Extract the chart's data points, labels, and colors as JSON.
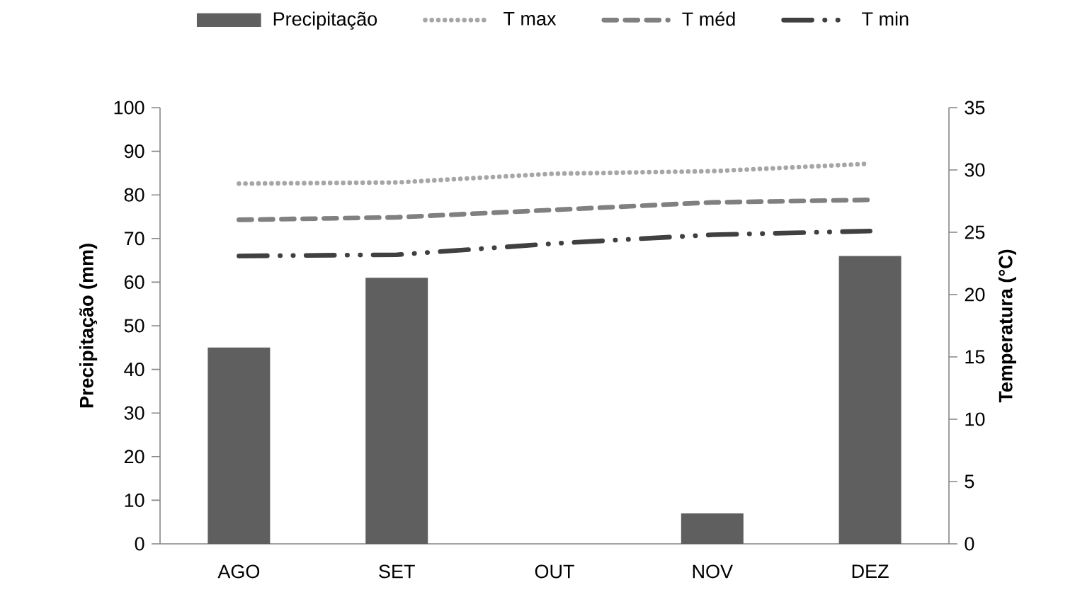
{
  "chart_data": {
    "type": "bar",
    "categories": [
      "AGO",
      "SET",
      "OUT",
      "NOV",
      "DEZ"
    ],
    "series": [
      {
        "name": "Precipitação",
        "color": "#5f5f5f",
        "values": [
          45,
          61,
          0,
          7,
          66
        ]
      },
      {
        "name": "T max",
        "type": "line",
        "axis": "y2",
        "color": "#a6a6a6",
        "line_style": "dotted",
        "values": [
          28.9,
          29.0,
          29.7,
          29.9,
          30.5
        ]
      },
      {
        "name": "T méd",
        "type": "line",
        "axis": "y2",
        "color": "#808080",
        "line_style": "dashed",
        "values": [
          26.0,
          26.2,
          26.8,
          27.4,
          27.6
        ]
      },
      {
        "name": "T min",
        "type": "line",
        "axis": "y2",
        "color": "#404040",
        "line_style": "dashdot",
        "values": [
          23.1,
          23.2,
          24.1,
          24.8,
          25.1
        ]
      }
    ],
    "ylabel": "Precipitação (mm)",
    "y2label": "Temperatura (°C)",
    "ylim": [
      0,
      100
    ],
    "yticks": [
      0,
      10,
      20,
      30,
      40,
      50,
      60,
      70,
      80,
      90,
      100
    ],
    "y2lim": [
      0,
      35
    ],
    "y2ticks": [
      0,
      5,
      10,
      15,
      20,
      25,
      30,
      35
    ],
    "legend": "top"
  }
}
